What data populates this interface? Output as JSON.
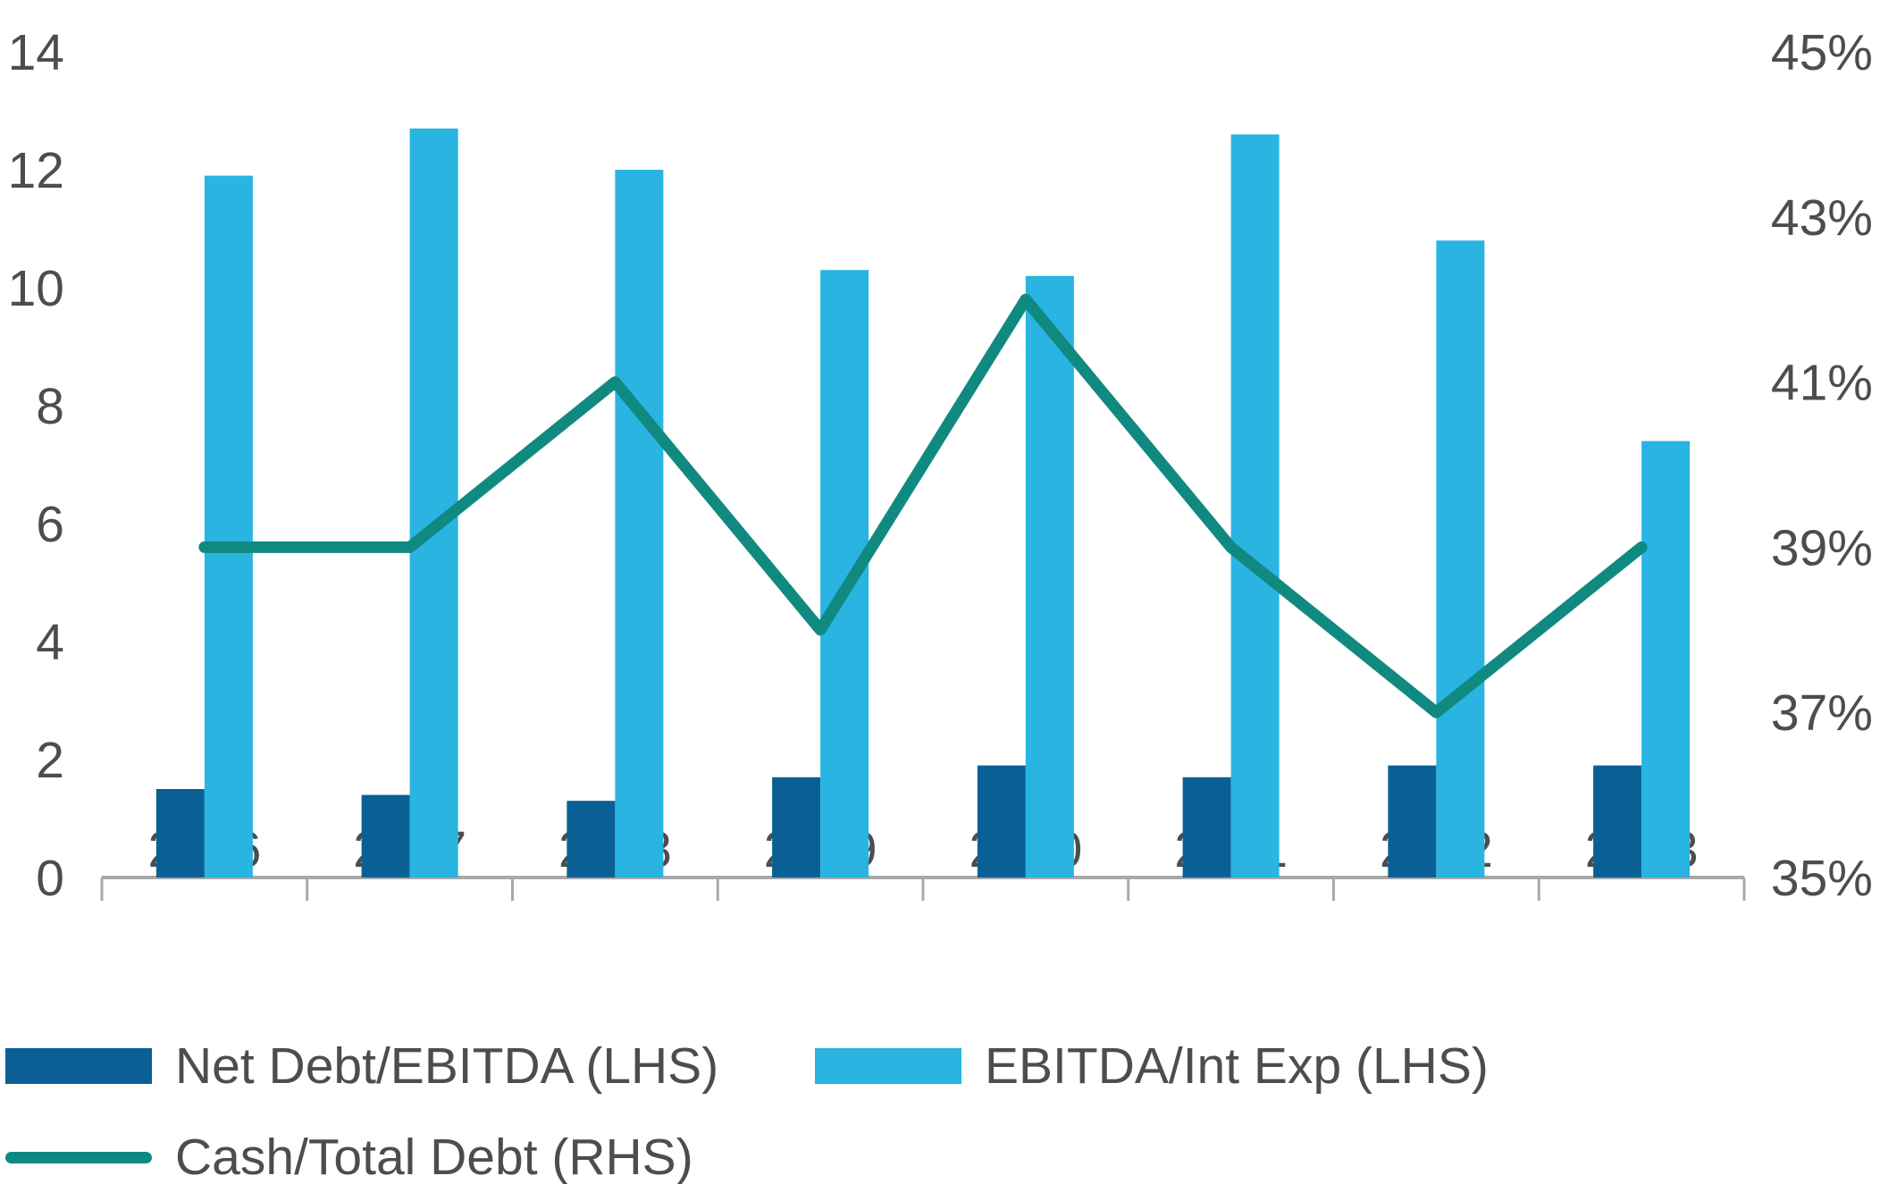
{
  "chart_data": {
    "type": "combo-bar-line",
    "title": "",
    "categories": [
      "2016",
      "2017",
      "2018",
      "2019",
      "2020",
      "2021",
      "2022",
      "2023"
    ],
    "series": [
      {
        "name": "Net Debt/EBITDA (LHS)",
        "type": "bar",
        "axis": "left",
        "color": "#0a6094",
        "values": [
          1.5,
          1.4,
          1.3,
          1.7,
          1.9,
          1.7,
          1.9,
          1.9
        ]
      },
      {
        "name": "EBITDA/Int Exp (LHS)",
        "type": "bar",
        "axis": "left",
        "color": "#29b4e2",
        "values": [
          11.9,
          12.7,
          12.0,
          10.3,
          10.2,
          12.6,
          10.8,
          7.4
        ]
      },
      {
        "name": "Cash/Total Debt (RHS)",
        "type": "line",
        "axis": "right",
        "unit": "%",
        "color": "#108a80",
        "values": [
          39,
          39,
          41,
          38,
          42,
          39,
          37,
          39
        ]
      }
    ],
    "left_axis": {
      "min": 0,
      "max": 14,
      "tick_step": 2,
      "tick_labels": [
        "0",
        "2",
        "4",
        "6",
        "8",
        "10",
        "12",
        "14"
      ]
    },
    "right_axis": {
      "min": 35,
      "max": 45,
      "tick_step": 2,
      "tick_labels": [
        "35%",
        "37%",
        "39%",
        "41%",
        "43%",
        "45%"
      ]
    },
    "grid": false,
    "legend_position": "bottom-left",
    "axis_line_color": "#a9a9a9",
    "label_color": "#4d4d4d"
  },
  "legend": {
    "items": [
      {
        "label": "Net Debt/EBITDA (LHS)",
        "swatch": "rect",
        "color": "#0a6094"
      },
      {
        "label": "EBITDA/Int Exp (LHS)",
        "swatch": "rect",
        "color": "#29b4e2"
      },
      {
        "label": "Cash/Total Debt (RHS)",
        "swatch": "line",
        "color": "#108a80"
      }
    ]
  }
}
